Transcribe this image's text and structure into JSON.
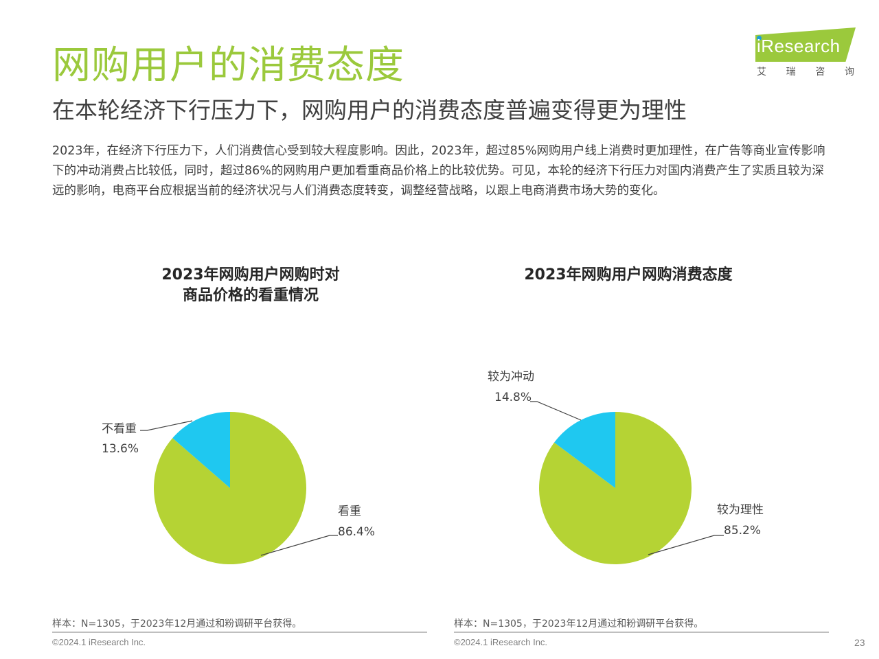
{
  "header": {
    "title": "网购用户的消费态度",
    "subtitle": "在本轮经济下行压力下，网购用户的消费态度普遍变得更为理性",
    "body": "2023年，在经济下行压力下，人们消费信心受到较大程度影响。因此，2023年，超过85%网购用户线上消费时更加理性，在广告等商业宣传影响下的冲动消费占比较低，同时，超过86%的网购用户更加看重商品价格上的比较优势。可见，本轮的经济下行压力对国内消费产生了实质且较为深远的影响，电商平台应根据当前的经济状况与人们消费态度转变，调整经营战略，以跟上电商消费市场大势的变化。"
  },
  "logo": {
    "wordmark": "iResearch",
    "cn": [
      "艾",
      "瑞",
      "咨",
      "询"
    ],
    "colors": {
      "banner": "#9bc93c",
      "dot": "#1a9fd9"
    }
  },
  "chart_data": [
    {
      "type": "pie",
      "title_lines": [
        "2023年网购用户网购时对",
        "商品价格的看重情况"
      ],
      "slices": [
        {
          "label": "看重",
          "value": 86.4,
          "display": "86.4%",
          "color": "#b5d334"
        },
        {
          "label": "不看重",
          "value": 13.6,
          "display": "13.6%",
          "color": "#1fc8f0"
        }
      ],
      "legend": "none",
      "footnote": "样本：N=1305，于2023年12月通过和粉调研平台获得。",
      "copyright": "©2024.1 iResearch Inc."
    },
    {
      "type": "pie",
      "title_lines": [
        "2023年网购用户网购消费态度"
      ],
      "slices": [
        {
          "label": "较为理性",
          "value": 85.2,
          "display": "85.2%",
          "color": "#b5d334"
        },
        {
          "label": "较为冲动",
          "value": 14.8,
          "display": "14.8%",
          "color": "#1fc8f0"
        }
      ],
      "legend": "none",
      "footnote": "样本：N=1305，于2023年12月通过和粉调研平台获得。",
      "copyright": "©2024.1 iResearch Inc."
    }
  ],
  "page_number": "23"
}
